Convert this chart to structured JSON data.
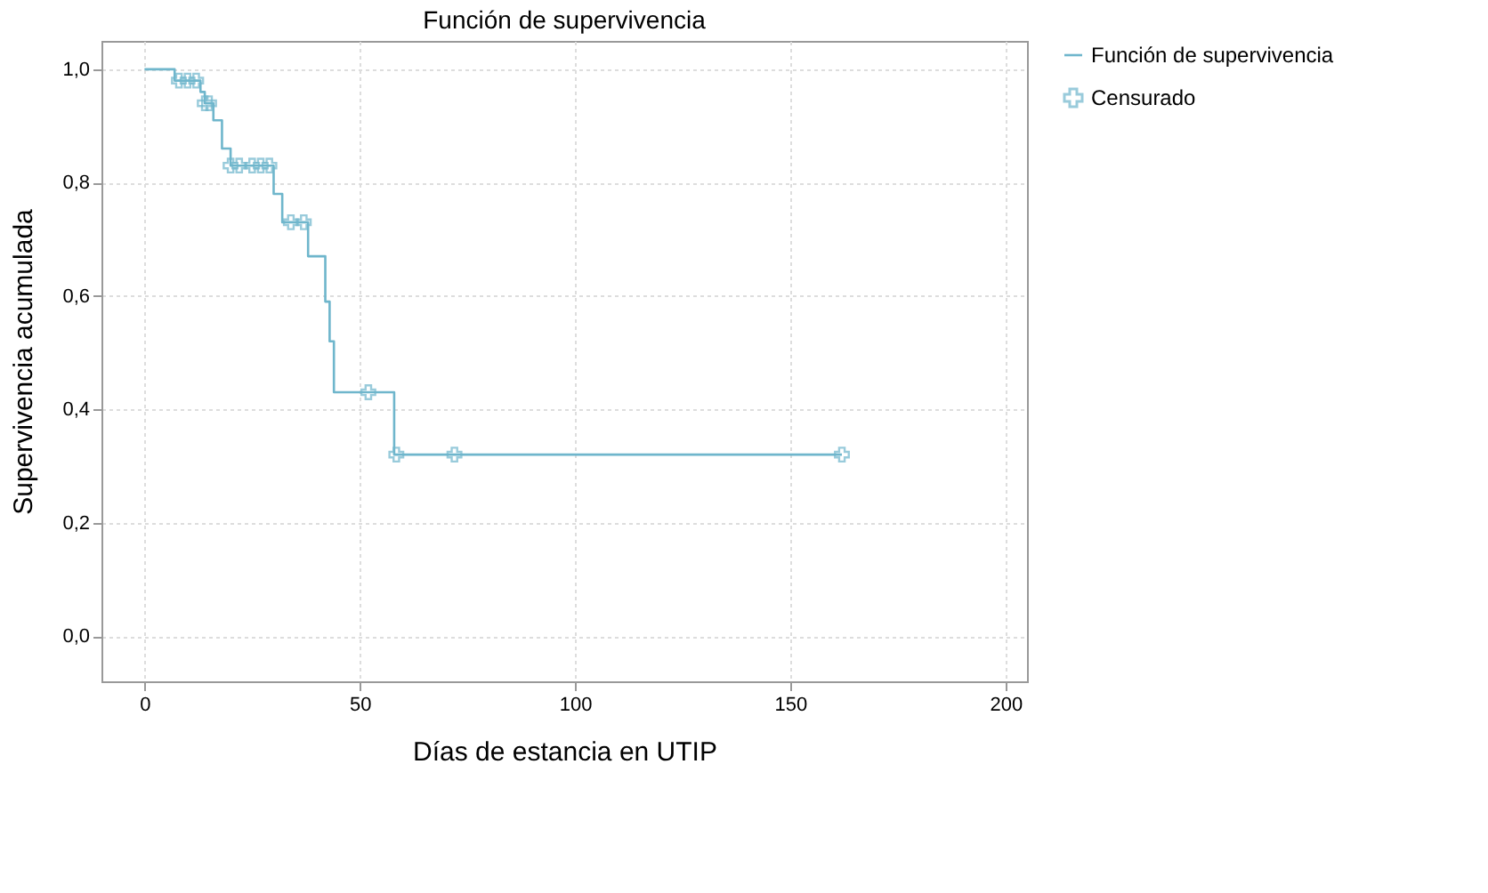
{
  "chart_data": {
    "type": "step",
    "title": "Función de supervivencia",
    "xlabel": "Días de estancia en UTIP",
    "ylabel": "Supervivencia acumulada",
    "xlim": [
      -10,
      205
    ],
    "xticks": [
      0,
      50,
      100,
      150,
      200
    ],
    "ylim": [
      -0.08,
      1.05
    ],
    "yticks": [
      {
        "value": 0,
        "label": "0,0"
      },
      {
        "value": 0.2,
        "label": "0,2"
      },
      {
        "value": 0.4,
        "label": "0,4"
      },
      {
        "value": 0.6,
        "label": "0,6"
      },
      {
        "value": 0.8,
        "label": "0,8"
      },
      {
        "value": 1.0,
        "label": "1,0"
      }
    ],
    "grid": true,
    "legend": "top right",
    "series": [
      {
        "name": "Función de supervivencia",
        "color": "#6fb6cc",
        "line_style": "solid",
        "x": [
          0,
          7,
          13,
          14,
          16,
          18,
          20,
          30,
          32,
          38,
          42,
          43,
          44,
          58,
          162
        ],
        "values": [
          1.0,
          0.98,
          0.96,
          0.94,
          0.91,
          0.86,
          0.83,
          0.78,
          0.73,
          0.67,
          0.59,
          0.52,
          0.43,
          0.32,
          0.32
        ]
      },
      {
        "name": "Censurado",
        "type": "scatter",
        "color": "#6fb6cc",
        "marker": "cross",
        "x": [
          8,
          10,
          12,
          14,
          15,
          20,
          22,
          25,
          27,
          29,
          34,
          37,
          52,
          58.5,
          72,
          162
        ],
        "values": [
          0.98,
          0.98,
          0.98,
          0.94,
          0.94,
          0.83,
          0.83,
          0.83,
          0.83,
          0.83,
          0.73,
          0.73,
          0.43,
          0.32,
          0.32,
          0.32
        ]
      }
    ]
  }
}
